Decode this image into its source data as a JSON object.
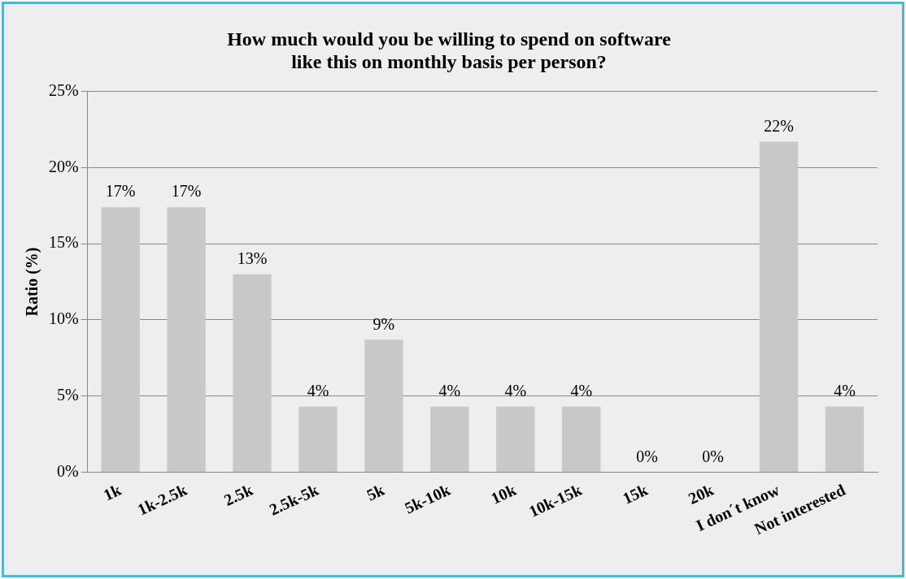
{
  "chart_data": {
    "type": "bar",
    "title": "How much would you be willing to spend on software like this on monthly basis per person?",
    "ylabel": "Ratio (%)",
    "categories": [
      "1k",
      "1k-2.5k",
      "2.5k",
      "2.5k-5k",
      "5k",
      "5k-10k",
      "10k",
      "10k-15k",
      "15k",
      "20k",
      "I don´t know",
      "Not interested"
    ],
    "values": [
      17.4,
      17.4,
      13.0,
      4.3,
      8.7,
      4.3,
      4.3,
      4.3,
      0,
      0,
      21.7,
      4.3
    ],
    "value_labels": [
      "17%",
      "17%",
      "13%",
      "4%",
      "9%",
      "4%",
      "4%",
      "4%",
      "0%",
      "0%",
      "22%",
      "4%"
    ],
    "color": "#c8c8c8",
    "ylim": [
      0,
      25
    ],
    "yticks": [
      {
        "value": 0,
        "label": "0%"
      },
      {
        "value": 5,
        "label": "5%"
      },
      {
        "value": 10,
        "label": "10%"
      },
      {
        "value": 15,
        "label": "15%"
      },
      {
        "value": 20,
        "label": "20%"
      },
      {
        "value": 25,
        "label": "25%"
      }
    ],
    "grid": "y",
    "legend": false
  }
}
